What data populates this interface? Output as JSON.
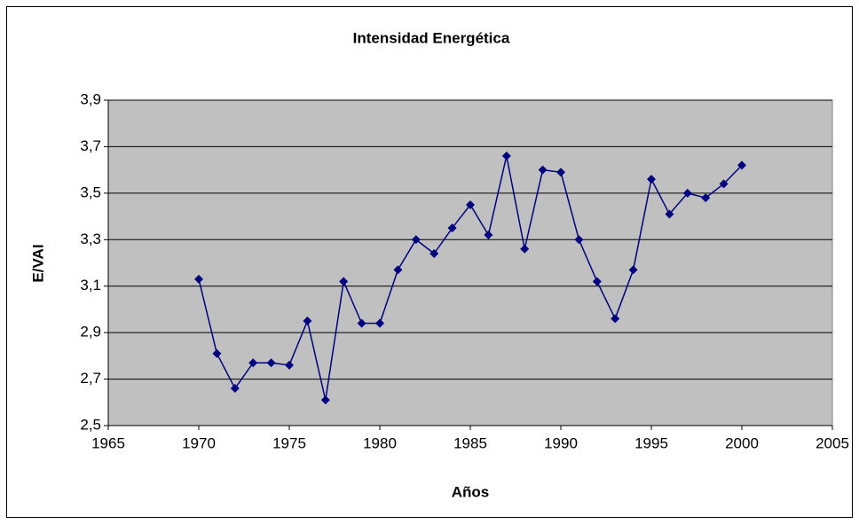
{
  "chart_data": {
    "type": "line",
    "title": "Intensidad Energética",
    "x_label": "Años",
    "y_label": "E/VAI",
    "x": [
      1970,
      1971,
      1972,
      1973,
      1974,
      1975,
      1976,
      1977,
      1978,
      1979,
      1980,
      1981,
      1982,
      1983,
      1984,
      1985,
      1986,
      1987,
      1988,
      1989,
      1990,
      1991,
      1992,
      1993,
      1994,
      1995,
      1996,
      1997,
      1998,
      1999,
      2000
    ],
    "values": [
      3.13,
      2.81,
      2.66,
      2.77,
      2.77,
      2.76,
      2.95,
      2.61,
      3.12,
      2.94,
      2.94,
      3.17,
      3.3,
      3.24,
      3.35,
      3.45,
      3.32,
      3.66,
      3.26,
      3.6,
      3.59,
      3.3,
      3.12,
      2.96,
      3.17,
      3.56,
      3.41,
      3.5,
      3.48,
      3.54,
      3.62
    ],
    "color": "#000080",
    "xlim": [
      1965,
      2005
    ],
    "xticks": [
      1965,
      1970,
      1975,
      1980,
      1985,
      1990,
      1995,
      2000,
      2005
    ],
    "ylim": [
      2.5,
      3.9
    ],
    "yticks": [
      {
        "value": 2.5,
        "label": "2,5"
      },
      {
        "value": 2.7,
        "label": "2,7"
      },
      {
        "value": 2.9,
        "label": "2,9"
      },
      {
        "value": 3.1,
        "label": "3,1"
      },
      {
        "value": 3.3,
        "label": "3,3"
      },
      {
        "value": 3.5,
        "label": "3,5"
      },
      {
        "value": 3.7,
        "label": "3,7"
      },
      {
        "value": 3.9,
        "label": "3,9"
      }
    ],
    "grid": true
  }
}
